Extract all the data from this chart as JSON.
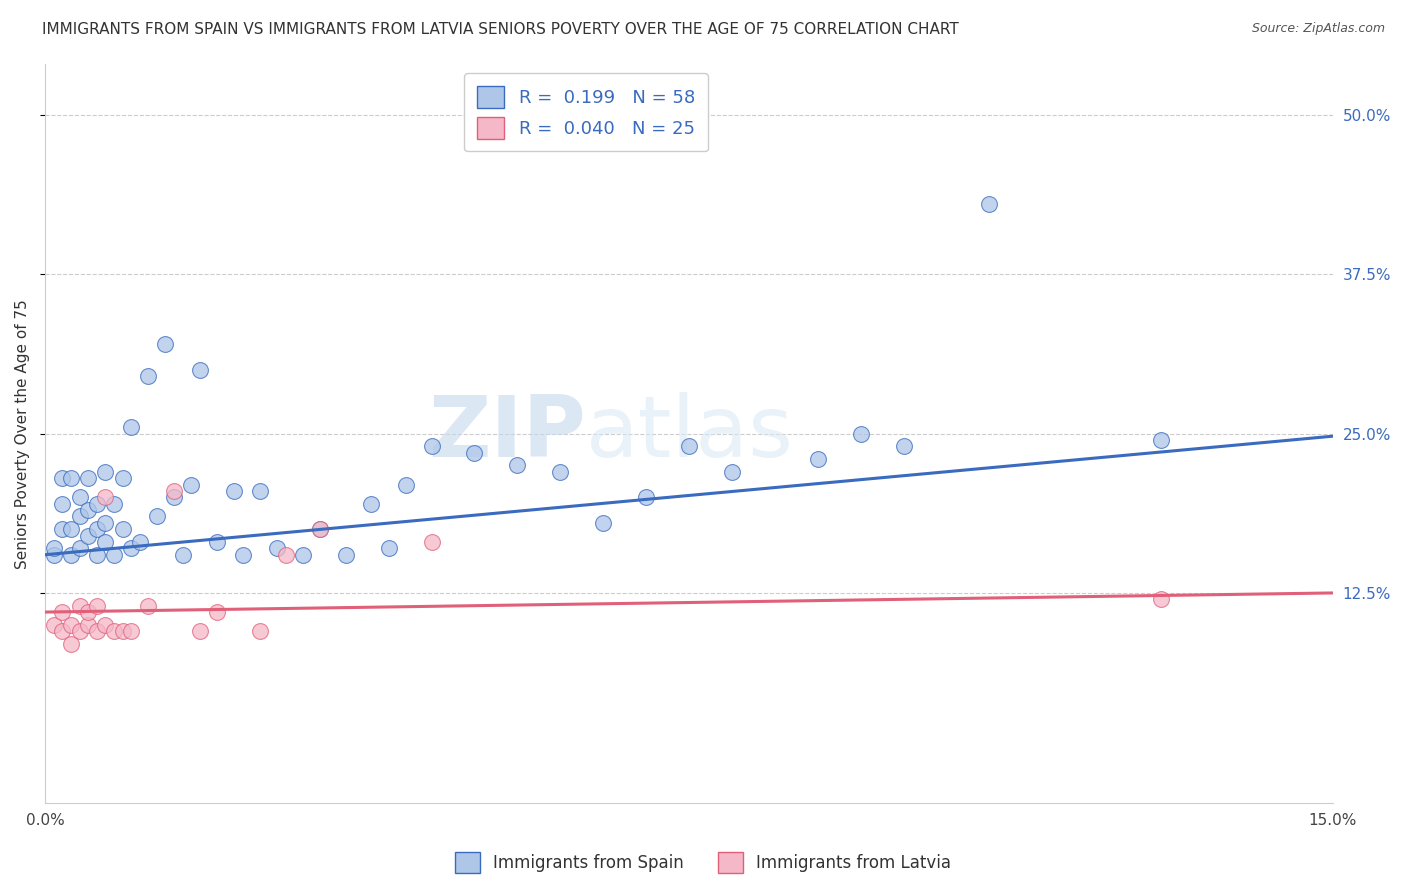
{
  "title": "IMMIGRANTS FROM SPAIN VS IMMIGRANTS FROM LATVIA SENIORS POVERTY OVER THE AGE OF 75 CORRELATION CHART",
  "source": "Source: ZipAtlas.com",
  "ylabel": "Seniors Poverty Over the Age of 75",
  "xlabel": "",
  "xlim": [
    0.0,
    0.15
  ],
  "ylim": [
    -0.04,
    0.54
  ],
  "xticks": [
    0.0,
    0.15
  ],
  "xtick_labels": [
    "0.0%",
    "15.0%"
  ],
  "ytick_positions": [
    0.125,
    0.25,
    0.375,
    0.5
  ],
  "ytick_labels": [
    "12.5%",
    "25.0%",
    "37.5%",
    "50.0%"
  ],
  "spain_R": 0.199,
  "spain_N": 58,
  "latvia_R": 0.04,
  "latvia_N": 25,
  "spain_color": "#aec6e8",
  "latvia_color": "#f4b8c8",
  "spain_line_color": "#3a6bbf",
  "latvia_line_color": "#e0607a",
  "watermark_zip": "ZIP",
  "watermark_atlas": "atlas",
  "spain_scatter_x": [
    0.001,
    0.001,
    0.002,
    0.002,
    0.002,
    0.003,
    0.003,
    0.003,
    0.004,
    0.004,
    0.004,
    0.005,
    0.005,
    0.005,
    0.006,
    0.006,
    0.006,
    0.007,
    0.007,
    0.007,
    0.008,
    0.008,
    0.009,
    0.009,
    0.01,
    0.01,
    0.011,
    0.012,
    0.013,
    0.014,
    0.015,
    0.016,
    0.017,
    0.018,
    0.02,
    0.022,
    0.023,
    0.025,
    0.027,
    0.03,
    0.032,
    0.035,
    0.038,
    0.04,
    0.042,
    0.045,
    0.05,
    0.055,
    0.06,
    0.065,
    0.07,
    0.075,
    0.08,
    0.09,
    0.095,
    0.1,
    0.11,
    0.13
  ],
  "spain_scatter_y": [
    0.155,
    0.16,
    0.175,
    0.195,
    0.215,
    0.155,
    0.175,
    0.215,
    0.16,
    0.185,
    0.2,
    0.17,
    0.19,
    0.215,
    0.155,
    0.175,
    0.195,
    0.165,
    0.18,
    0.22,
    0.155,
    0.195,
    0.175,
    0.215,
    0.16,
    0.255,
    0.165,
    0.295,
    0.185,
    0.32,
    0.2,
    0.155,
    0.21,
    0.3,
    0.165,
    0.205,
    0.155,
    0.205,
    0.16,
    0.155,
    0.175,
    0.155,
    0.195,
    0.16,
    0.21,
    0.24,
    0.235,
    0.225,
    0.22,
    0.18,
    0.2,
    0.24,
    0.22,
    0.23,
    0.25,
    0.24,
    0.43,
    0.245
  ],
  "latvia_scatter_x": [
    0.001,
    0.002,
    0.002,
    0.003,
    0.003,
    0.004,
    0.004,
    0.005,
    0.005,
    0.006,
    0.006,
    0.007,
    0.007,
    0.008,
    0.009,
    0.01,
    0.012,
    0.015,
    0.018,
    0.02,
    0.025,
    0.028,
    0.032,
    0.045,
    0.13
  ],
  "latvia_scatter_y": [
    0.1,
    0.095,
    0.11,
    0.085,
    0.1,
    0.095,
    0.115,
    0.1,
    0.11,
    0.095,
    0.115,
    0.1,
    0.2,
    0.095,
    0.095,
    0.095,
    0.115,
    0.205,
    0.095,
    0.11,
    0.095,
    0.155,
    0.175,
    0.165,
    0.12
  ],
  "spain_line_x0": 0.0,
  "spain_line_y0": 0.155,
  "spain_line_x1": 0.15,
  "spain_line_y1": 0.248,
  "latvia_line_x0": 0.0,
  "latvia_line_y0": 0.11,
  "latvia_line_x1": 0.15,
  "latvia_line_y1": 0.125,
  "background_color": "#ffffff",
  "grid_color": "#cccccc",
  "title_fontsize": 11,
  "axis_label_fontsize": 11,
  "tick_fontsize": 11,
  "legend_fontsize": 13
}
